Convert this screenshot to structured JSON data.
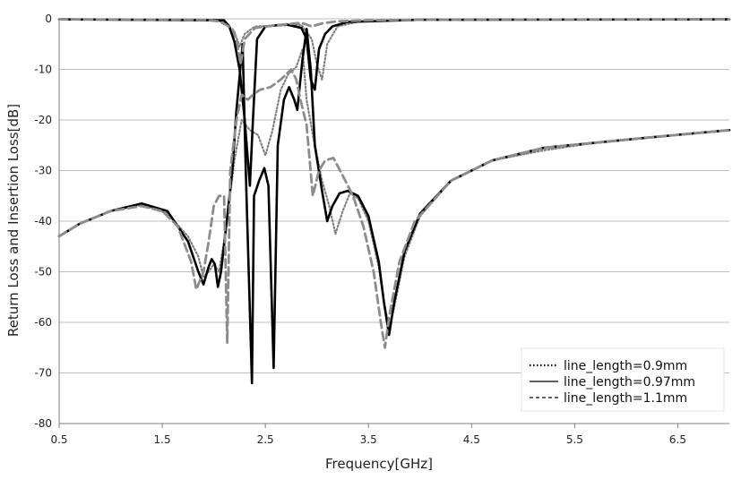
{
  "chart_data": {
    "type": "line",
    "title": "",
    "xlabel": "Frequency[GHz]",
    "ylabel": "Return Loss and Insertion Loss[dB]",
    "xlim": [
      0.5,
      7.0
    ],
    "ylim": [
      -80,
      0
    ],
    "x_ticks": [
      "0.5",
      "1.5",
      "2.5",
      "3.5",
      "4.5",
      "5.5",
      "6.5"
    ],
    "y_ticks": [
      "0",
      "-10",
      "-20",
      "-30",
      "-40",
      "-50",
      "-60",
      "-70",
      "-80"
    ],
    "grid": "horizontal",
    "legend_position": "bottom-right",
    "series": [
      {
        "name": "line_length=0.9mm",
        "style": "dotted",
        "color": "#808080",
        "curves": [
          [
            [
              0.5,
              -43
            ],
            [
              0.7,
              -40.5
            ],
            [
              1.0,
              -38
            ],
            [
              1.3,
              -36.8
            ],
            [
              1.55,
              -38.5
            ],
            [
              1.75,
              -43
            ],
            [
              1.85,
              -47
            ],
            [
              1.9,
              -51
            ],
            [
              1.95,
              -50
            ],
            [
              2.0,
              -48.5
            ],
            [
              2.05,
              -50
            ],
            [
              2.1,
              -44
            ],
            [
              2.15,
              -36
            ],
            [
              2.2,
              -28
            ],
            [
              2.27,
              -20
            ],
            [
              2.35,
              -22
            ],
            [
              2.43,
              -23
            ],
            [
              2.5,
              -27
            ],
            [
              2.57,
              -22
            ],
            [
              2.65,
              -14
            ],
            [
              2.72,
              -11
            ],
            [
              2.8,
              -9.5
            ],
            [
              2.86,
              -6
            ],
            [
              2.9,
              -16
            ],
            [
              2.97,
              -24
            ],
            [
              3.05,
              -32
            ],
            [
              3.12,
              -37
            ],
            [
              3.18,
              -42.5
            ],
            [
              3.25,
              -38
            ],
            [
              3.32,
              -34.5
            ],
            [
              3.4,
              -35.5
            ],
            [
              3.5,
              -40
            ],
            [
              3.6,
              -49
            ],
            [
              3.65,
              -56
            ],
            [
              3.7,
              -61
            ],
            [
              3.75,
              -57
            ],
            [
              3.85,
              -47
            ],
            [
              4.0,
              -39
            ],
            [
              4.3,
              -32
            ],
            [
              4.7,
              -28
            ],
            [
              5.2,
              -26
            ],
            [
              5.7,
              -24.5
            ],
            [
              6.2,
              -23.5
            ],
            [
              7.0,
              -22
            ]
          ],
          [
            [
              0.5,
              -0.1
            ],
            [
              1.8,
              -0.1
            ],
            [
              2.0,
              -0.3
            ],
            [
              2.1,
              -0.7
            ],
            [
              2.2,
              -2.5
            ],
            [
              2.25,
              -5.5
            ],
            [
              2.3,
              -3
            ],
            [
              2.4,
              -1.5
            ],
            [
              2.7,
              -1.3
            ],
            [
              2.85,
              -1.2
            ],
            [
              2.95,
              -4
            ],
            [
              3.0,
              -9
            ],
            [
              3.05,
              -12
            ],
            [
              3.1,
              -5
            ],
            [
              3.2,
              -1.5
            ],
            [
              3.4,
              -0.6
            ],
            [
              4.0,
              -0.2
            ],
            [
              7.0,
              -0.1
            ]
          ]
        ]
      },
      {
        "name": "line_length=0.97mm",
        "style": "solid",
        "color": "#000000",
        "curves": [
          [
            [
              0.5,
              -43
            ],
            [
              0.7,
              -40.5
            ],
            [
              1.0,
              -38
            ],
            [
              1.3,
              -36.5
            ],
            [
              1.55,
              -38
            ],
            [
              1.75,
              -44
            ],
            [
              1.85,
              -50
            ],
            [
              1.9,
              -52.5
            ],
            [
              1.95,
              -49
            ],
            [
              1.98,
              -47.5
            ],
            [
              2.01,
              -48.5
            ],
            [
              2.04,
              -53
            ],
            [
              2.07,
              -50
            ],
            [
              2.12,
              -41
            ],
            [
              2.18,
              -30
            ],
            [
              2.22,
              -18
            ],
            [
              2.28,
              -5
            ],
            [
              2.31,
              -30
            ],
            [
              2.37,
              -72
            ],
            [
              2.39,
              -35
            ],
            [
              2.44,
              -32
            ],
            [
              2.49,
              -29.5
            ],
            [
              2.53,
              -33
            ],
            [
              2.58,
              -69
            ],
            [
              2.62,
              -25
            ],
            [
              2.68,
              -16
            ],
            [
              2.73,
              -13.5
            ],
            [
              2.78,
              -16
            ],
            [
              2.81,
              -18
            ],
            [
              2.86,
              -8
            ],
            [
              2.9,
              -2
            ],
            [
              2.94,
              -10
            ],
            [
              2.98,
              -25
            ],
            [
              3.05,
              -34
            ],
            [
              3.1,
              -40
            ],
            [
              3.15,
              -37
            ],
            [
              3.22,
              -34.5
            ],
            [
              3.3,
              -34
            ],
            [
              3.4,
              -35
            ],
            [
              3.5,
              -39
            ],
            [
              3.6,
              -48
            ],
            [
              3.65,
              -56
            ],
            [
              3.7,
              -62.5
            ],
            [
              3.75,
              -56
            ],
            [
              3.85,
              -46
            ],
            [
              4.0,
              -38.5
            ],
            [
              4.3,
              -32
            ],
            [
              4.7,
              -28
            ],
            [
              5.2,
              -25.5
            ],
            [
              5.7,
              -24.5
            ],
            [
              6.2,
              -23.5
            ],
            [
              7.0,
              -22
            ]
          ],
          [
            [
              0.5,
              -0.1
            ],
            [
              2.1,
              -0.3
            ],
            [
              2.15,
              -1.5
            ],
            [
              2.2,
              -4.5
            ],
            [
              2.25,
              -10
            ],
            [
              2.3,
              -20
            ],
            [
              2.35,
              -33
            ],
            [
              2.38,
              -20
            ],
            [
              2.42,
              -4
            ],
            [
              2.5,
              -1.5
            ],
            [
              2.7,
              -1.1
            ],
            [
              2.85,
              -1.8
            ],
            [
              2.9,
              -4
            ],
            [
              2.94,
              -12
            ],
            [
              2.98,
              -14
            ],
            [
              3.02,
              -6
            ],
            [
              3.08,
              -3
            ],
            [
              3.15,
              -1.5
            ],
            [
              3.3,
              -0.6
            ],
            [
              4.0,
              -0.2
            ],
            [
              7.0,
              -0.1
            ]
          ]
        ]
      },
      {
        "name": "line_length=1.1mm",
        "style": "dashed",
        "color": "#8c8c8c",
        "curves": [
          [
            [
              0.5,
              -43
            ],
            [
              0.7,
              -40.5
            ],
            [
              1.0,
              -38
            ],
            [
              1.3,
              -37
            ],
            [
              1.5,
              -38
            ],
            [
              1.65,
              -41
            ],
            [
              1.78,
              -48
            ],
            [
              1.83,
              -53.5
            ],
            [
              1.9,
              -50
            ],
            [
              1.95,
              -44
            ],
            [
              2.0,
              -37
            ],
            [
              2.05,
              -35
            ],
            [
              2.1,
              -35
            ],
            [
              2.13,
              -64
            ],
            [
              2.16,
              -30
            ],
            [
              2.22,
              -20
            ],
            [
              2.27,
              -15
            ],
            [
              2.33,
              -16
            ],
            [
              2.38,
              -15
            ],
            [
              2.45,
              -14
            ],
            [
              2.55,
              -13.5
            ],
            [
              2.65,
              -12
            ],
            [
              2.75,
              -10
            ],
            [
              2.8,
              -12
            ],
            [
              2.84,
              -16
            ],
            [
              2.9,
              -21
            ],
            [
              2.96,
              -35
            ],
            [
              3.02,
              -30
            ],
            [
              3.08,
              -28
            ],
            [
              3.16,
              -27.5
            ],
            [
              3.25,
              -31
            ],
            [
              3.35,
              -35
            ],
            [
              3.45,
              -41
            ],
            [
              3.55,
              -50
            ],
            [
              3.62,
              -60
            ],
            [
              3.66,
              -65
            ],
            [
              3.7,
              -59
            ],
            [
              3.8,
              -48
            ],
            [
              3.95,
              -40
            ],
            [
              4.3,
              -32
            ],
            [
              4.7,
              -28
            ],
            [
              5.2,
              -25.5
            ],
            [
              5.7,
              -24.5
            ],
            [
              6.2,
              -23.5
            ],
            [
              7.0,
              -22
            ]
          ],
          [
            [
              0.5,
              -0.1
            ],
            [
              1.9,
              -0.2
            ],
            [
              2.05,
              -0.5
            ],
            [
              2.12,
              -1.2
            ],
            [
              2.18,
              -2
            ],
            [
              2.22,
              -4
            ],
            [
              2.26,
              -9
            ],
            [
              2.3,
              -4
            ],
            [
              2.4,
              -1.8
            ],
            [
              2.55,
              -1.4
            ],
            [
              2.75,
              -1.0
            ],
            [
              2.85,
              -0.8
            ],
            [
              2.95,
              -1.5
            ],
            [
              3.05,
              -0.9
            ],
            [
              3.2,
              -0.5
            ],
            [
              3.5,
              -0.3
            ],
            [
              4.0,
              -0.2
            ],
            [
              7.0,
              -0.1
            ]
          ]
        ]
      }
    ]
  }
}
